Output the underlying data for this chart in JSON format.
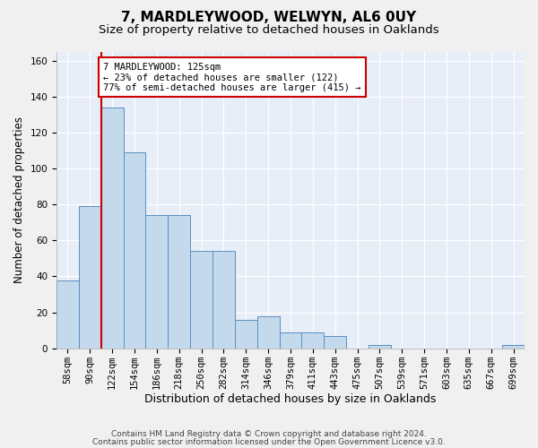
{
  "title": "7, MARDLEYWOOD, WELWYN, AL6 0UY",
  "subtitle": "Size of property relative to detached houses in Oaklands",
  "xlabel": "Distribution of detached houses by size in Oaklands",
  "ylabel": "Number of detached properties",
  "categories": [
    "58sqm",
    "90sqm",
    "122sqm",
    "154sqm",
    "186sqm",
    "218sqm",
    "250sqm",
    "282sqm",
    "314sqm",
    "346sqm",
    "379sqm",
    "411sqm",
    "443sqm",
    "475sqm",
    "507sqm",
    "539sqm",
    "571sqm",
    "603sqm",
    "635sqm",
    "667sqm",
    "699sqm"
  ],
  "values": [
    38,
    79,
    134,
    109,
    74,
    74,
    54,
    54,
    16,
    18,
    9,
    9,
    7,
    0,
    2,
    0,
    0,
    0,
    0,
    0,
    2
  ],
  "bar_color": "#c5d9ed",
  "bar_edge_color": "#5a8fc0",
  "vline_color": "#cc0000",
  "vline_x_index": 2,
  "annotation_text": "7 MARDLEYWOOD: 125sqm\n← 23% of detached houses are smaller (122)\n77% of semi-detached houses are larger (415) →",
  "annotation_box_facecolor": "#ffffff",
  "annotation_box_edgecolor": "#cc0000",
  "ylim": [
    0,
    165
  ],
  "yticks": [
    0,
    20,
    40,
    60,
    80,
    100,
    120,
    140,
    160
  ],
  "background_color": "#e8eef8",
  "grid_color": "#ffffff",
  "title_fontsize": 11,
  "subtitle_fontsize": 9.5,
  "ylabel_fontsize": 8.5,
  "xlabel_fontsize": 9,
  "tick_fontsize": 7.5,
  "annotation_fontsize": 7.5,
  "footer_fontsize": 6.5,
  "footer_line1": "Contains HM Land Registry data © Crown copyright and database right 2024.",
  "footer_line2": "Contains public sector information licensed under the Open Government Licence v3.0."
}
